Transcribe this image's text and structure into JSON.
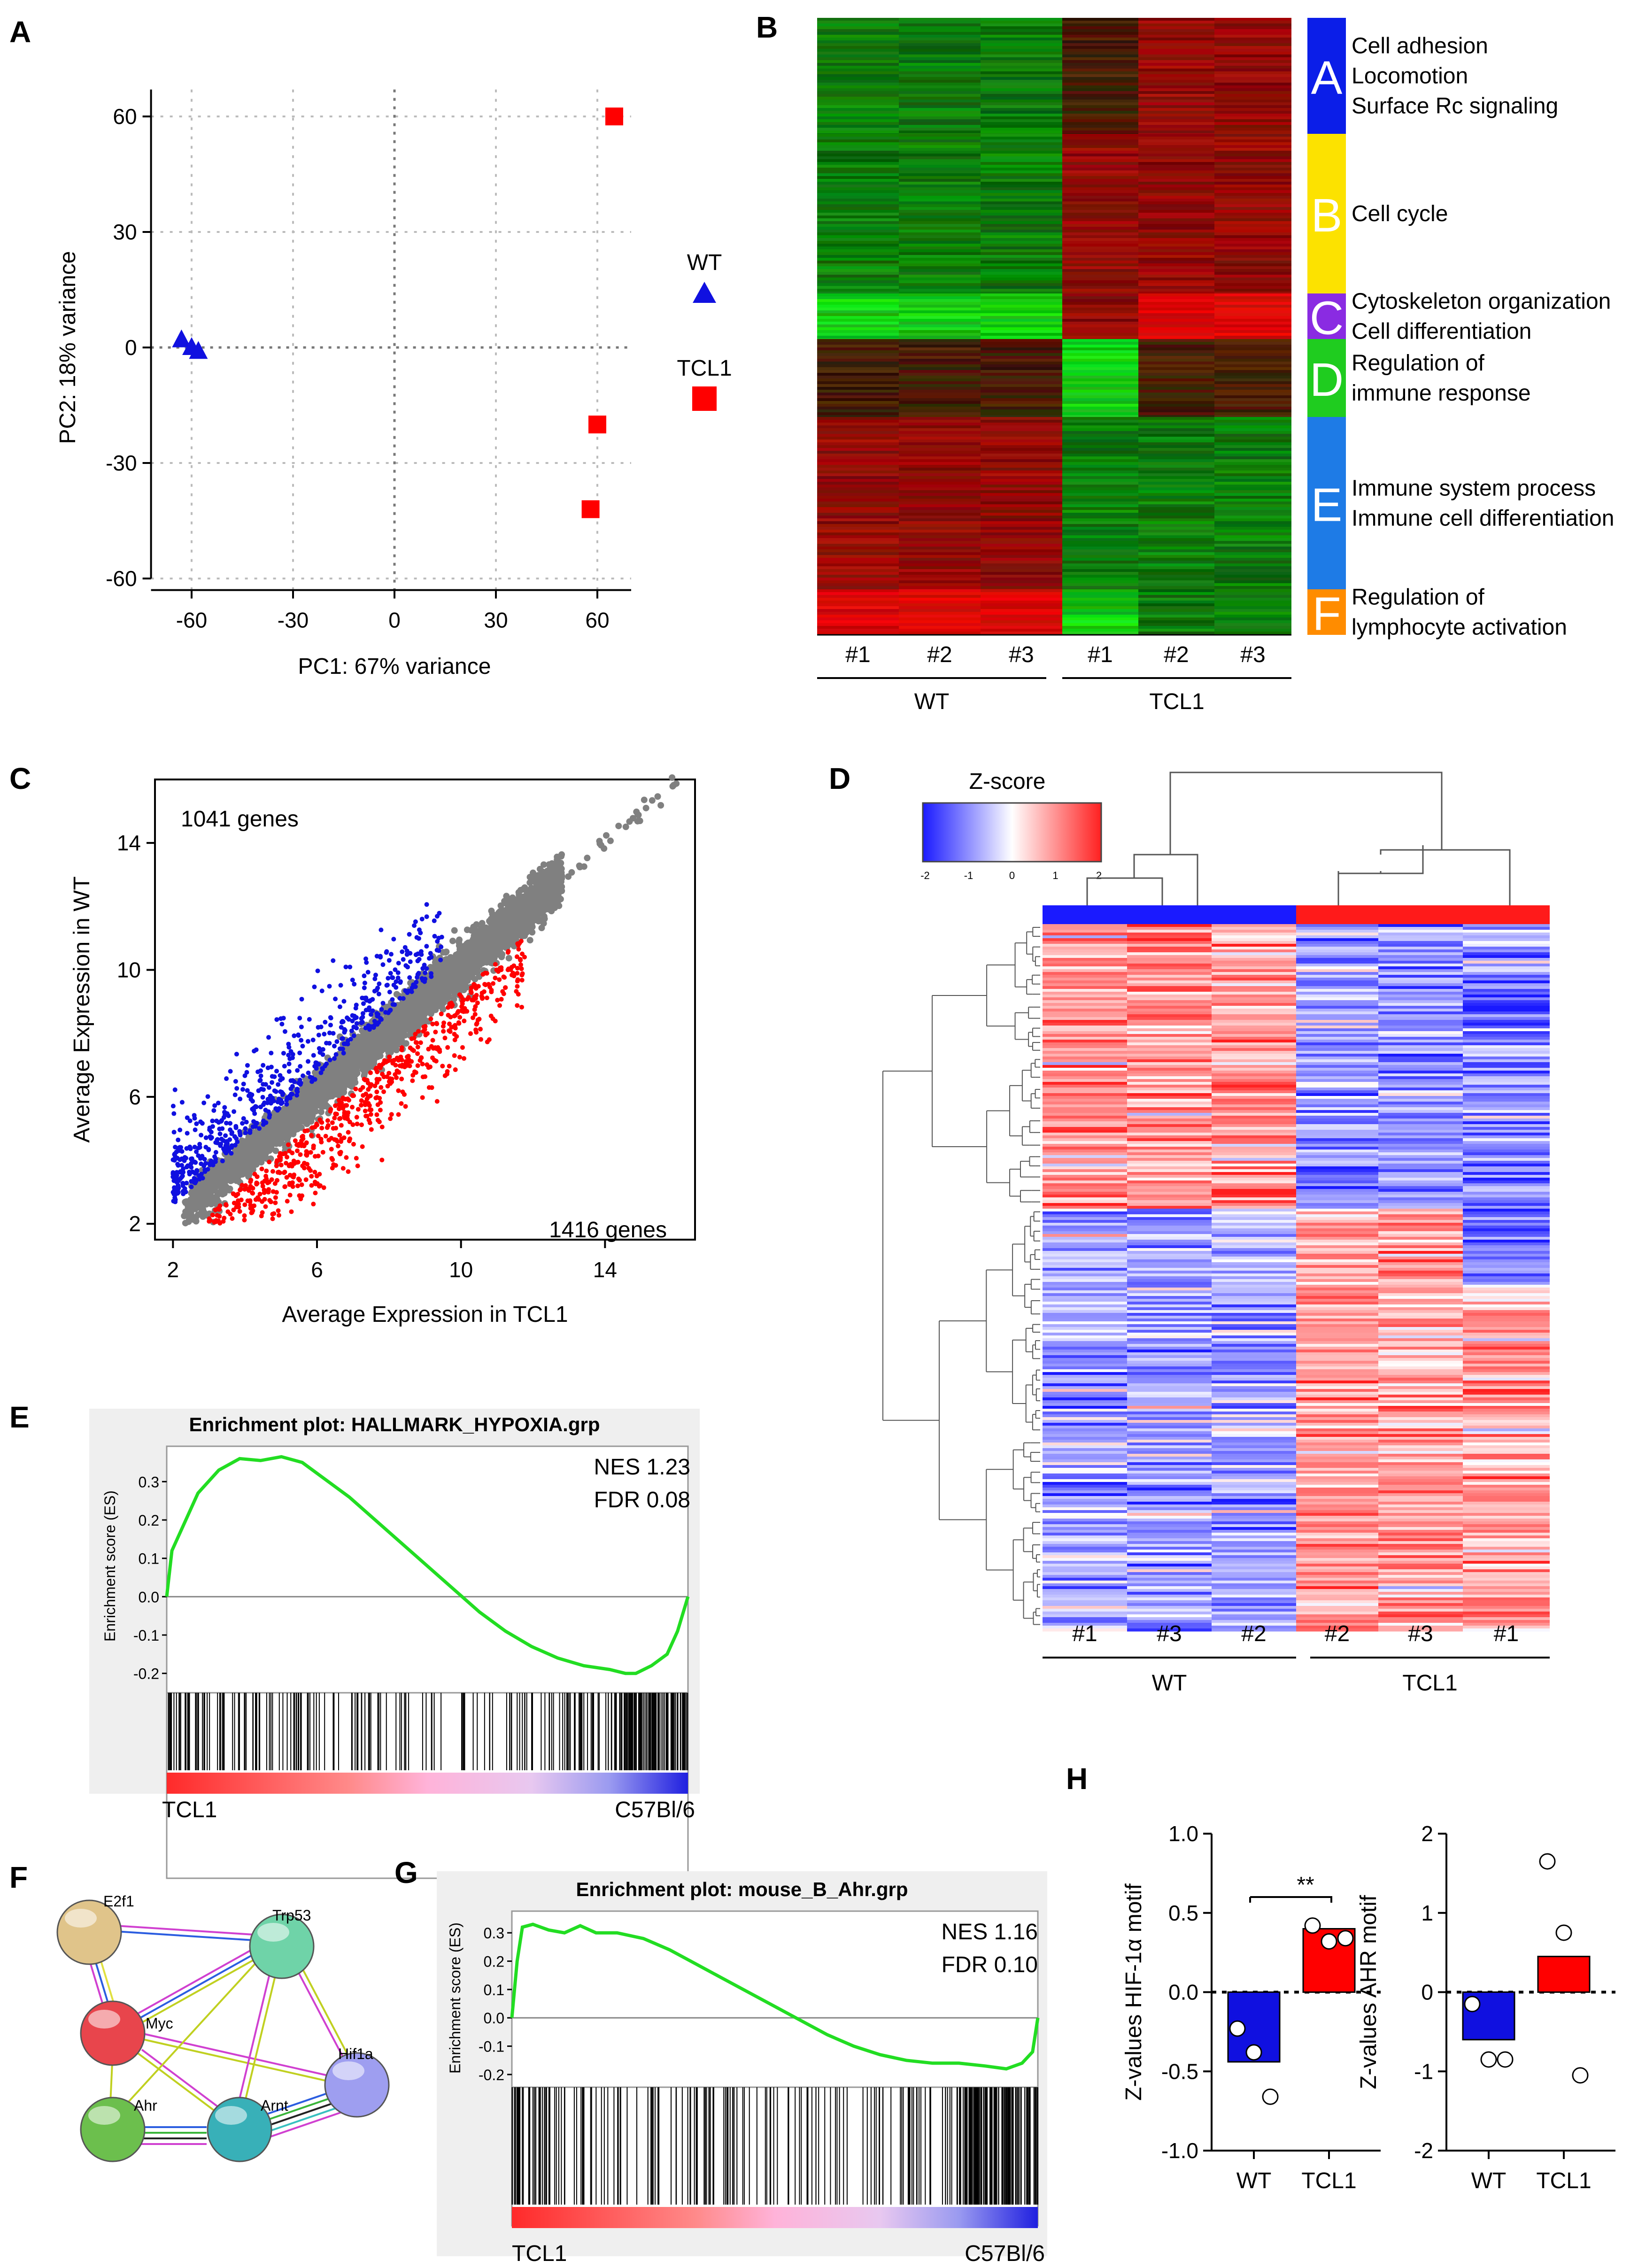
{
  "panels": {
    "A": {
      "label": "A",
      "chart_data": {
        "type": "scatter",
        "xlabel": "PC1: 67% variance",
        "ylabel": "PC2: 18% variance",
        "xlim": [
          -70,
          70
        ],
        "ylim": [
          -60,
          60
        ],
        "xticks": [
          "-60",
          "-30",
          "0",
          "30",
          "60"
        ],
        "yticks": [
          "60",
          "30",
          "0",
          "-30",
          "-60"
        ],
        "series": [
          {
            "name": "WT",
            "color": "#1010e0",
            "marker": "triangle",
            "points": [
              [
                -63,
                2
              ],
              [
                -60,
                0
              ],
              [
                -58,
                -1
              ]
            ]
          },
          {
            "name": "TCL1",
            "color": "#ff0000",
            "marker": "square",
            "points": [
              [
                65,
                60
              ],
              [
                60,
                -20
              ],
              [
                58,
                -42
              ]
            ]
          }
        ]
      },
      "legend": [
        {
          "label": "WT"
        },
        {
          "label": "TCL1"
        }
      ]
    },
    "B": {
      "label": "B",
      "chart_data": {
        "type": "heatmap",
        "columns": [
          "#1",
          "#2",
          "#3",
          "#1",
          "#2",
          "#3"
        ],
        "groups": [
          "WT",
          "TCL1"
        ],
        "clusters": [
          {
            "id": "A",
            "color": "#0b1ee8",
            "terms": [
              "Cell adhesion",
              "Locomotion",
              "Surface Rc signaling"
            ],
            "pattern": [
              "g",
              "g",
              "g",
              "d",
              "r",
              "r"
            ]
          },
          {
            "id": "B",
            "color": "#fce200",
            "terms": [
              "Cell cycle"
            ],
            "pattern": [
              "g",
              "g",
              "g",
              "r",
              "r",
              "r"
            ]
          },
          {
            "id": "C",
            "color": "#8a2be2",
            "terms": [
              "Cytoskeleton organization",
              "Cell differentiation"
            ],
            "pattern": [
              "G",
              "G",
              "G",
              "r",
              "R",
              "R"
            ]
          },
          {
            "id": "D",
            "color": "#1fcc1f",
            "terms": [
              "Regulation of",
              "immune response"
            ],
            "pattern": [
              "d",
              "d",
              "d",
              "G",
              "d",
              "d"
            ]
          },
          {
            "id": "E",
            "color": "#1e7be6",
            "terms": [
              "Immune system process",
              "Immune cell differentiation"
            ],
            "pattern": [
              "r",
              "r",
              "r",
              "g",
              "g",
              "g"
            ]
          },
          {
            "id": "F",
            "color": "#ff8c00",
            "terms": [
              "Regulation of",
              "lymphocyte activation"
            ],
            "pattern": [
              "R",
              "R",
              "R",
              "G",
              "g",
              "g"
            ]
          }
        ]
      }
    },
    "C": {
      "label": "C",
      "chart_data": {
        "type": "scatter",
        "xlabel": "Average Expression in TCL1",
        "ylabel": "Average Expression in WT",
        "xticks": [
          "2",
          "6",
          "10",
          "14"
        ],
        "yticks": [
          "14",
          "10",
          "6",
          "2"
        ],
        "xlim": [
          1.5,
          16.5
        ],
        "ylim": [
          1.5,
          16
        ],
        "up_label": "1041 genes",
        "down_label": "1416 genes",
        "colors": {
          "up": "#1010e0",
          "down": "#ff0000",
          "ns": "#808080"
        }
      }
    },
    "D": {
      "label": "D",
      "zscore_title": "Z-score",
      "zscore_ticks": [
        "-2",
        "-1",
        "0",
        "1",
        "2"
      ],
      "chart_data": {
        "type": "heatmap",
        "columns": [
          "#1",
          "#3",
          "#2",
          "#2",
          "#3",
          "#1"
        ],
        "groups": [
          "WT",
          "TCL1"
        ],
        "scale": {
          "min": -2,
          "max": 2,
          "low": "#1a1aff",
          "mid": "#ffffff",
          "high": "#ff2020"
        }
      }
    },
    "E": {
      "label": "E",
      "chart_data": {
        "type": "line",
        "title": "Enrichment plot: HALLMARK_HYPOXIA.grp",
        "ylabel": "Enrichment score (ES)",
        "yticks": [
          "0.3",
          "0.2",
          "0.1",
          "0.0",
          "-0.1",
          "-0.2"
        ],
        "ylim": [
          -0.22,
          0.38
        ],
        "nes": "NES 1.23",
        "fdr": "FDR 0.08",
        "left_label": "TCL1",
        "right_label": "C57Bl/6",
        "series": [
          {
            "name": "ES",
            "color": "#22dd22",
            "x": [
              0,
              0.01,
              0.03,
              0.06,
              0.1,
              0.14,
              0.18,
              0.22,
              0.26,
              0.3,
              0.35,
              0.4,
              0.45,
              0.5,
              0.55,
              0.6,
              0.65,
              0.7,
              0.75,
              0.8,
              0.85,
              0.88,
              0.9,
              0.93,
              0.96,
              0.98,
              1.0
            ],
            "y": [
              0.0,
              0.12,
              0.18,
              0.27,
              0.33,
              0.36,
              0.355,
              0.365,
              0.35,
              0.31,
              0.26,
              0.2,
              0.14,
              0.08,
              0.02,
              -0.04,
              -0.09,
              -0.13,
              -0.16,
              -0.18,
              -0.19,
              -0.2,
              -0.2,
              -0.18,
              -0.15,
              -0.09,
              0.0
            ]
          }
        ]
      }
    },
    "F": {
      "label": "F",
      "nodes": [
        {
          "name": "E2f1",
          "color": "#e0c48a"
        },
        {
          "name": "Trp53",
          "color": "#6fd3a8"
        },
        {
          "name": "Myc",
          "color": "#e8454c"
        },
        {
          "name": "Hif1a",
          "color": "#9e9ef0"
        },
        {
          "name": "Ahr",
          "color": "#6cbf4d"
        },
        {
          "name": "Arnt",
          "color": "#38b0b8"
        }
      ]
    },
    "G": {
      "label": "G",
      "chart_data": {
        "type": "line",
        "title": "Enrichment plot: mouse_B_Ahr.grp",
        "ylabel": "Enrichment score (ES)",
        "yticks": [
          "0.3",
          "0.2",
          "0.1",
          "0.0",
          "-0.1",
          "-0.2"
        ],
        "ylim": [
          -0.22,
          0.36
        ],
        "nes": "NES 1.16",
        "fdr": "FDR 0.10",
        "left_label": "TCL1",
        "right_label": "C57Bl/6",
        "series": [
          {
            "name": "ES",
            "color": "#22dd22",
            "x": [
              0,
              0.01,
              0.02,
              0.04,
              0.07,
              0.1,
              0.13,
              0.16,
              0.2,
              0.25,
              0.3,
              0.35,
              0.4,
              0.45,
              0.5,
              0.55,
              0.6,
              0.65,
              0.7,
              0.75,
              0.8,
              0.85,
              0.9,
              0.94,
              0.97,
              0.99,
              1.0
            ],
            "y": [
              0.0,
              0.2,
              0.32,
              0.33,
              0.31,
              0.3,
              0.325,
              0.3,
              0.3,
              0.28,
              0.24,
              0.19,
              0.14,
              0.09,
              0.04,
              -0.01,
              -0.06,
              -0.1,
              -0.13,
              -0.15,
              -0.16,
              -0.16,
              -0.17,
              -0.18,
              -0.16,
              -0.12,
              0.0
            ]
          }
        ]
      }
    },
    "H": {
      "label": "H",
      "significance": "**",
      "chart_data": [
        {
          "type": "bar",
          "categories": [
            "WT",
            "TCL1"
          ],
          "values": [
            -0.44,
            0.4
          ],
          "colors": [
            "#1010e0",
            "#ff0000"
          ],
          "points": [
            [
              -0.23,
              -0.38,
              -0.66
            ],
            [
              0.42,
              0.32,
              0.34
            ]
          ],
          "ylabel": "Z-values HIF-1α motif",
          "ylim": [
            -1.0,
            1.0
          ],
          "yticks": [
            "1.0",
            "0.5",
            "0.0",
            "-0.5",
            "-1.0"
          ]
        },
        {
          "type": "bar",
          "categories": [
            "WT",
            "TCL1"
          ],
          "values": [
            -0.6,
            0.45
          ],
          "colors": [
            "#1010e0",
            "#ff0000"
          ],
          "points": [
            [
              -0.15,
              -0.85,
              -0.85
            ],
            [
              1.65,
              0.75,
              -1.05
            ]
          ],
          "ylabel": "Z-values AHR motif",
          "ylim": [
            -2,
            2
          ],
          "yticks": [
            "2",
            "1",
            "0",
            "-1",
            "-2"
          ]
        }
      ]
    }
  }
}
